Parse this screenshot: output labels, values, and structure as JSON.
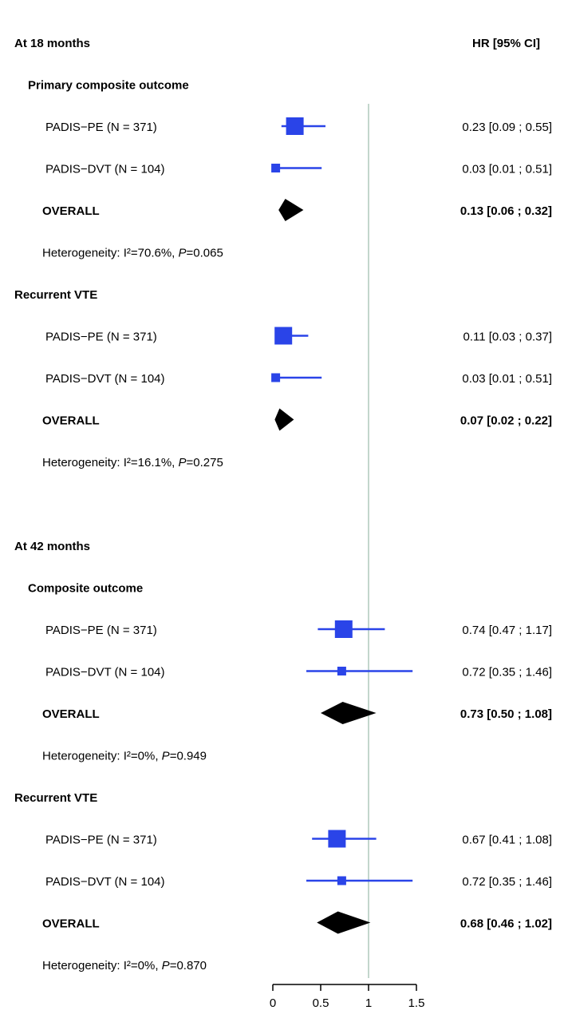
{
  "chart_data": {
    "type": "forest",
    "header": {
      "hr": "HR [95% CI]"
    },
    "x_axis": {
      "min": 0,
      "max": 1.5,
      "ticks": [
        0,
        0.5,
        1,
        1.5
      ],
      "tick_labels": [
        "0",
        "0.5",
        "1",
        "1.5"
      ],
      "reference_line": 1
    },
    "colors": {
      "study": "#2a44e8",
      "overall": "#000000",
      "reference": "#c3d6cc"
    },
    "sections": [
      {
        "title": "At 18 months",
        "outcomes": [
          {
            "title": "Primary composite outcome",
            "studies": [
              {
                "label": "PADIS−PE (N = 371)",
                "hr": 0.23,
                "lo": 0.09,
                "hi": 0.55,
                "weight": "large",
                "text": "0.23 [0.09 ; 0.55]"
              },
              {
                "label": "PADIS−DVT (N = 104)",
                "hr": 0.03,
                "lo": 0.01,
                "hi": 0.51,
                "weight": "small",
                "text": "0.03 [0.01 ; 0.51]"
              }
            ],
            "overall": {
              "label": "OVERALL",
              "hr": 0.13,
              "lo": 0.06,
              "hi": 0.32,
              "text": "0.13 [0.06 ; 0.32]"
            },
            "heterogeneity": {
              "prefix": "Heterogeneity: I²=70.6%, ",
              "p_letter": "P",
              "p_rest": "=0.065"
            }
          },
          {
            "title": "Recurrent VTE",
            "studies": [
              {
                "label": "PADIS−PE (N = 371)",
                "hr": 0.11,
                "lo": 0.03,
                "hi": 0.37,
                "weight": "large",
                "text": "0.11 [0.03 ; 0.37]"
              },
              {
                "label": "PADIS−DVT (N = 104)",
                "hr": 0.03,
                "lo": 0.01,
                "hi": 0.51,
                "weight": "small",
                "text": "0.03 [0.01 ; 0.51]"
              }
            ],
            "overall": {
              "label": "OVERALL",
              "hr": 0.07,
              "lo": 0.02,
              "hi": 0.22,
              "text": "0.07 [0.02 ; 0.22]"
            },
            "heterogeneity": {
              "prefix": "Heterogeneity: I²=16.1%, ",
              "p_letter": "P",
              "p_rest": "=0.275"
            }
          }
        ]
      },
      {
        "title": "At 42 months",
        "outcomes": [
          {
            "title": "Composite outcome",
            "studies": [
              {
                "label": "PADIS−PE (N = 371)",
                "hr": 0.74,
                "lo": 0.47,
                "hi": 1.17,
                "weight": "large",
                "text": "0.74 [0.47 ; 1.17]"
              },
              {
                "label": "PADIS−DVT (N = 104)",
                "hr": 0.72,
                "lo": 0.35,
                "hi": 1.46,
                "weight": "small",
                "text": "0.72 [0.35 ; 1.46]"
              }
            ],
            "overall": {
              "label": "OVERALL",
              "hr": 0.73,
              "lo": 0.5,
              "hi": 1.08,
              "text": "0.73 [0.50 ; 1.08]"
            },
            "heterogeneity": {
              "prefix": "Heterogeneity: I²=0%, ",
              "p_letter": "P",
              "p_rest": "=0.949"
            }
          },
          {
            "title": "Recurrent VTE",
            "studies": [
              {
                "label": "PADIS−PE (N = 371)",
                "hr": 0.67,
                "lo": 0.41,
                "hi": 1.08,
                "weight": "large",
                "text": "0.67 [0.41 ; 1.08]"
              },
              {
                "label": "PADIS−DVT (N = 104)",
                "hr": 0.72,
                "lo": 0.35,
                "hi": 1.46,
                "weight": "small",
                "text": "0.72 [0.35 ; 1.46]"
              }
            ],
            "overall": {
              "label": "OVERALL",
              "hr": 0.68,
              "lo": 0.46,
              "hi": 1.02,
              "text": "0.68 [0.46 ; 1.02]"
            },
            "heterogeneity": {
              "prefix": "Heterogeneity: I²=0%, ",
              "p_letter": "P",
              "p_rest": "=0.870"
            }
          }
        ]
      }
    ]
  }
}
